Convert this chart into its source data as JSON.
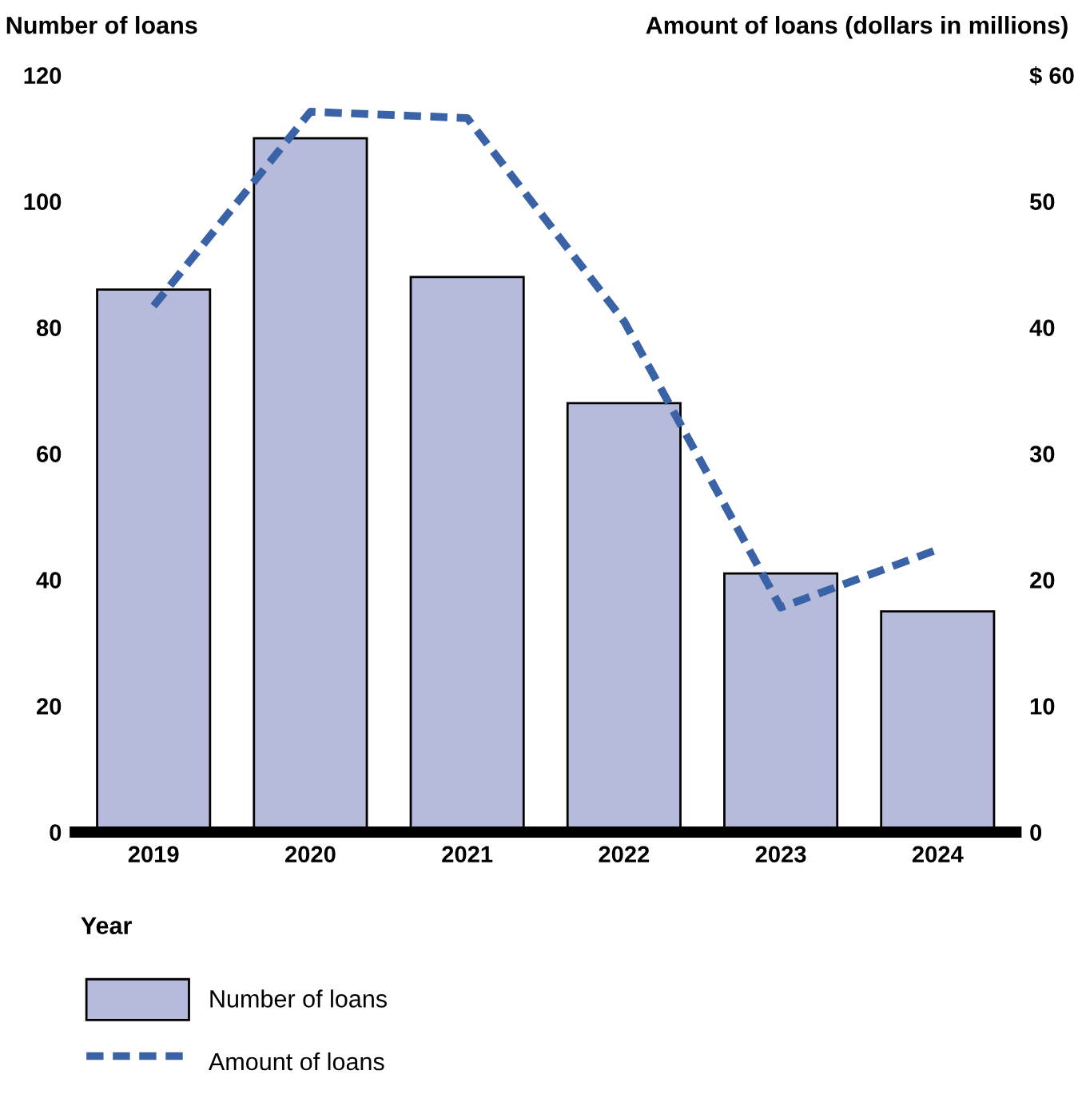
{
  "chart_data": {
    "type": "bar",
    "categories": [
      "2019",
      "2020",
      "2021",
      "2022",
      "2023",
      "2024"
    ],
    "ylabel": "Number of loans",
    "y2label": "Amount of loans (dollars in millions)",
    "xlabel": "Year",
    "series": [
      {
        "name": "Number of loans",
        "color": "#b6bbdb",
        "values": [
          86,
          110,
          88,
          68,
          41,
          35
        ]
      },
      {
        "name": "Amount of loans",
        "type": "line",
        "axis": "y2",
        "color": "#3a62a6",
        "line_style": "dashed",
        "values": [
          41.7,
          57.1,
          56.6,
          40.5,
          17.8,
          22.4
        ]
      }
    ],
    "ylim": [
      0,
      120
    ],
    "yticks": [
      0,
      20,
      40,
      60,
      80,
      100,
      120
    ],
    "y2lim": [
      0,
      60
    ],
    "y2ticks": [
      0,
      10,
      20,
      30,
      40,
      50,
      {
        "value": 60,
        "label": "$ 60"
      }
    ],
    "grid": false,
    "legend": "bottom left"
  }
}
